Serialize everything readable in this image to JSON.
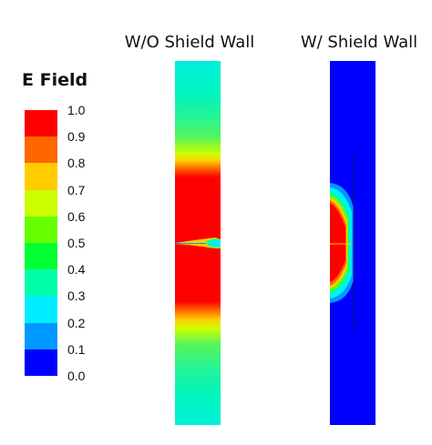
{
  "legend": {
    "title": "E Field",
    "ticks": [
      "1.0",
      "0.9",
      "0.8",
      "0.7",
      "0.6",
      "0.5",
      "0.4",
      "0.3",
      "0.2",
      "0.1",
      "0.0"
    ],
    "colors": [
      "#ff0000",
      "#ff6600",
      "#ffcc00",
      "#ccff00",
      "#66ff00",
      "#00ff33",
      "#00ffaa",
      "#00eeff",
      "#0099ff",
      "#0000ff"
    ]
  },
  "panels": [
    {
      "title": "W/O Shield Wall",
      "shield_wall": false
    },
    {
      "title": "W/ Shield Wall",
      "shield_wall": true
    }
  ]
}
